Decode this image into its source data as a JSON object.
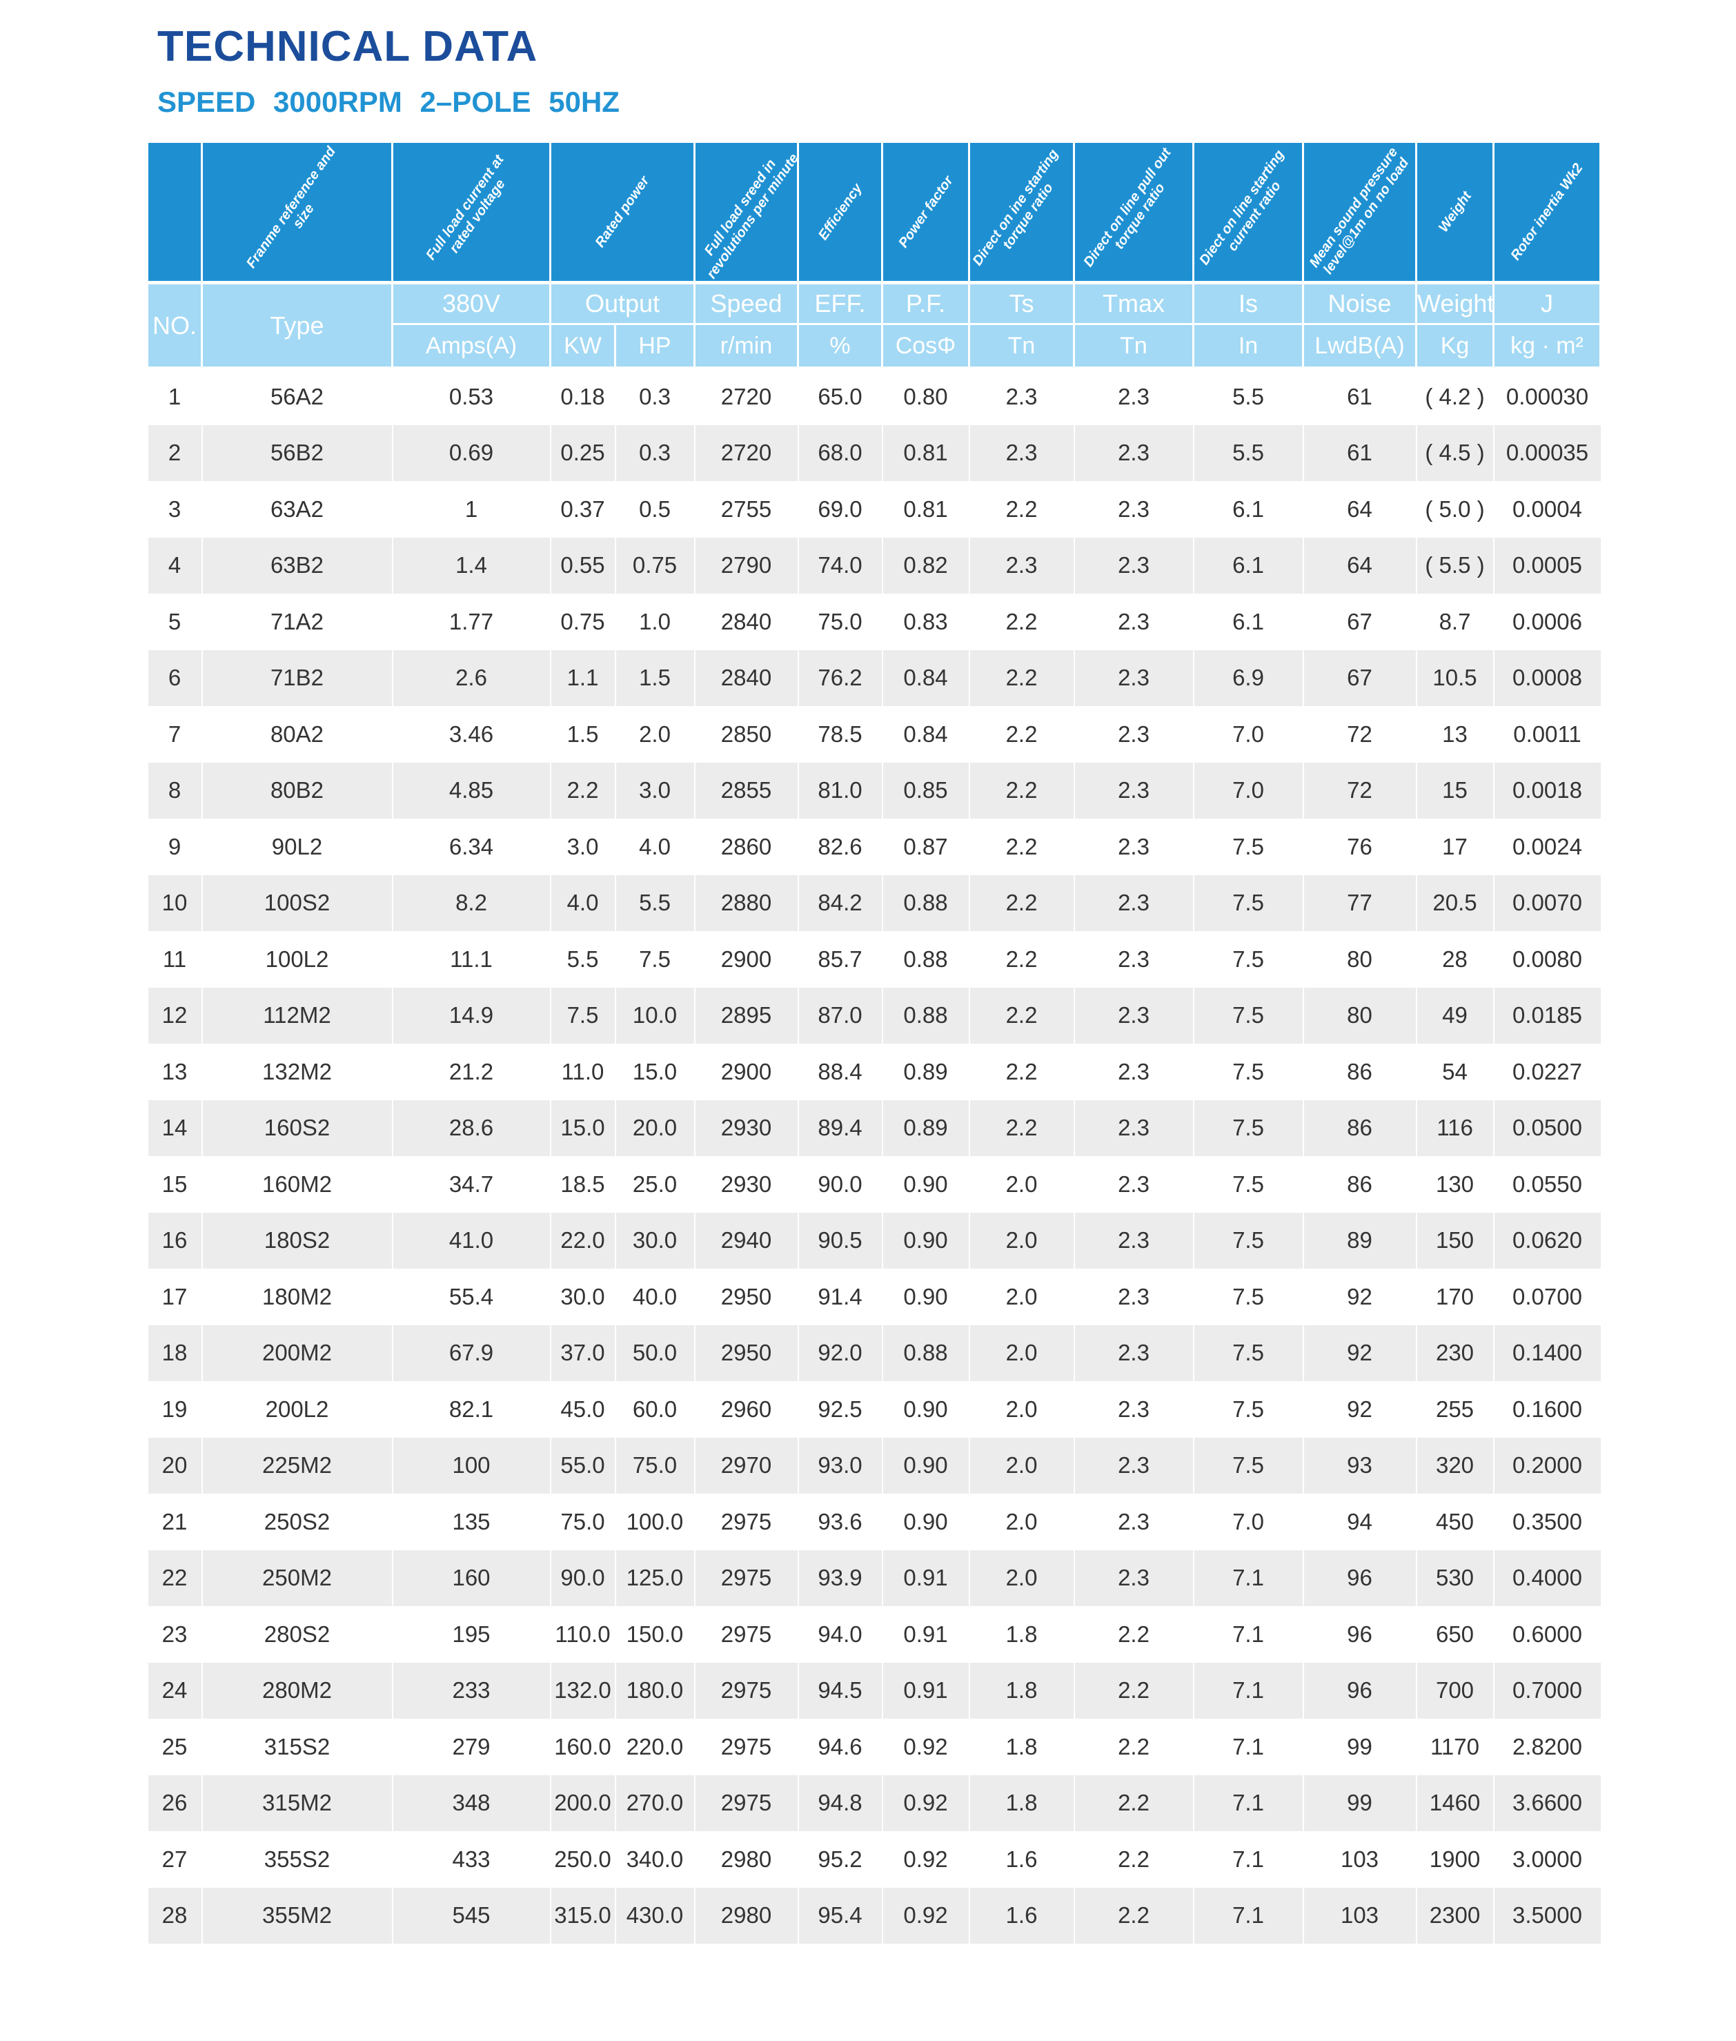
{
  "title": "TECHNICAL DATA",
  "subtitle": "SPEED   3000RPM   2–POLE  50HZ",
  "header": {
    "descriptions": [
      "",
      "Franme reference and size",
      "Full load current at rated voltage",
      "Rated power",
      "Full load sreed in revolutions per minute",
      "Efficiency",
      "Power factor",
      "Direct on ine starting torque ratio",
      "Direct on line pull out torque ratio",
      "Diect on line starting current ratio",
      "Mean sound pressure level@1m on no load",
      "Weight",
      "Rotor inertia Wk2"
    ],
    "no": "NO.",
    "type": "Type",
    "row1": [
      "380V",
      "Output",
      "Speed",
      "EFF.",
      "P.F.",
      "Ts",
      "Tmax",
      "Is",
      "Noise",
      "Weight",
      "J"
    ],
    "row2": [
      "Amps(A)",
      "KW",
      "HP",
      "r/min",
      "%",
      "CosΦ",
      "Tn",
      "Tn",
      "In",
      "LwdB(A)",
      "Kg",
      "kg · m²"
    ]
  },
  "colors": {
    "title": "#1b4d9b",
    "subtitle": "#2193d3",
    "header_dark": "#1e90d2",
    "header_light": "#a3d9f4",
    "row_alt": "#ececec"
  },
  "rows": [
    [
      "1",
      "56A2",
      "0.53",
      "0.18",
      "0.3",
      "2720",
      "65.0",
      "0.80",
      "2.3",
      "2.3",
      "5.5",
      "61",
      "( 4.2 )",
      "0.00030"
    ],
    [
      "2",
      "56B2",
      "0.69",
      "0.25",
      "0.3",
      "2720",
      "68.0",
      "0.81",
      "2.3",
      "2.3",
      "5.5",
      "61",
      "( 4.5 )",
      "0.00035"
    ],
    [
      "3",
      "63A2",
      "1",
      "0.37",
      "0.5",
      "2755",
      "69.0",
      "0.81",
      "2.2",
      "2.3",
      "6.1",
      "64",
      "( 5.0 )",
      "0.0004"
    ],
    [
      "4",
      "63B2",
      "1.4",
      "0.55",
      "0.75",
      "2790",
      "74.0",
      "0.82",
      "2.3",
      "2.3",
      "6.1",
      "64",
      "( 5.5 )",
      "0.0005"
    ],
    [
      "5",
      "71A2",
      "1.77",
      "0.75",
      "1.0",
      "2840",
      "75.0",
      "0.83",
      "2.2",
      "2.3",
      "6.1",
      "67",
      "8.7",
      "0.0006"
    ],
    [
      "6",
      "71B2",
      "2.6",
      "1.1",
      "1.5",
      "2840",
      "76.2",
      "0.84",
      "2.2",
      "2.3",
      "6.9",
      "67",
      "10.5",
      "0.0008"
    ],
    [
      "7",
      "80A2",
      "3.46",
      "1.5",
      "2.0",
      "2850",
      "78.5",
      "0.84",
      "2.2",
      "2.3",
      "7.0",
      "72",
      "13",
      "0.0011"
    ],
    [
      "8",
      "80B2",
      "4.85",
      "2.2",
      "3.0",
      "2855",
      "81.0",
      "0.85",
      "2.2",
      "2.3",
      "7.0",
      "72",
      "15",
      "0.0018"
    ],
    [
      "9",
      "90L2",
      "6.34",
      "3.0",
      "4.0",
      "2860",
      "82.6",
      "0.87",
      "2.2",
      "2.3",
      "7.5",
      "76",
      "17",
      "0.0024"
    ],
    [
      "10",
      "100S2",
      "8.2",
      "4.0",
      "5.5",
      "2880",
      "84.2",
      "0.88",
      "2.2",
      "2.3",
      "7.5",
      "77",
      "20.5",
      "0.0070"
    ],
    [
      "11",
      "100L2",
      "11.1",
      "5.5",
      "7.5",
      "2900",
      "85.7",
      "0.88",
      "2.2",
      "2.3",
      "7.5",
      "80",
      "28",
      "0.0080"
    ],
    [
      "12",
      "112M2",
      "14.9",
      "7.5",
      "10.0",
      "2895",
      "87.0",
      "0.88",
      "2.2",
      "2.3",
      "7.5",
      "80",
      "49",
      "0.0185"
    ],
    [
      "13",
      "132M2",
      "21.2",
      "11.0",
      "15.0",
      "2900",
      "88.4",
      "0.89",
      "2.2",
      "2.3",
      "7.5",
      "86",
      "54",
      "0.0227"
    ],
    [
      "14",
      "160S2",
      "28.6",
      "15.0",
      "20.0",
      "2930",
      "89.4",
      "0.89",
      "2.2",
      "2.3",
      "7.5",
      "86",
      "116",
      "0.0500"
    ],
    [
      "15",
      "160M2",
      "34.7",
      "18.5",
      "25.0",
      "2930",
      "90.0",
      "0.90",
      "2.0",
      "2.3",
      "7.5",
      "86",
      "130",
      "0.0550"
    ],
    [
      "16",
      "180S2",
      "41.0",
      "22.0",
      "30.0",
      "2940",
      "90.5",
      "0.90",
      "2.0",
      "2.3",
      "7.5",
      "89",
      "150",
      "0.0620"
    ],
    [
      "17",
      "180M2",
      "55.4",
      "30.0",
      "40.0",
      "2950",
      "91.4",
      "0.90",
      "2.0",
      "2.3",
      "7.5",
      "92",
      "170",
      "0.0700"
    ],
    [
      "18",
      "200M2",
      "67.9",
      "37.0",
      "50.0",
      "2950",
      "92.0",
      "0.88",
      "2.0",
      "2.3",
      "7.5",
      "92",
      "230",
      "0.1400"
    ],
    [
      "19",
      "200L2",
      "82.1",
      "45.0",
      "60.0",
      "2960",
      "92.5",
      "0.90",
      "2.0",
      "2.3",
      "7.5",
      "92",
      "255",
      "0.1600"
    ],
    [
      "20",
      "225M2",
      "100",
      "55.0",
      "75.0",
      "2970",
      "93.0",
      "0.90",
      "2.0",
      "2.3",
      "7.5",
      "93",
      "320",
      "0.2000"
    ],
    [
      "21",
      "250S2",
      "135",
      "75.0",
      "100.0",
      "2975",
      "93.6",
      "0.90",
      "2.0",
      "2.3",
      "7.0",
      "94",
      "450",
      "0.3500"
    ],
    [
      "22",
      "250M2",
      "160",
      "90.0",
      "125.0",
      "2975",
      "93.9",
      "0.91",
      "2.0",
      "2.3",
      "7.1",
      "96",
      "530",
      "0.4000"
    ],
    [
      "23",
      "280S2",
      "195",
      "110.0",
      "150.0",
      "2975",
      "94.0",
      "0.91",
      "1.8",
      "2.2",
      "7.1",
      "96",
      "650",
      "0.6000"
    ],
    [
      "24",
      "280M2",
      "233",
      "132.0",
      "180.0",
      "2975",
      "94.5",
      "0.91",
      "1.8",
      "2.2",
      "7.1",
      "96",
      "700",
      "0.7000"
    ],
    [
      "25",
      "315S2",
      "279",
      "160.0",
      "220.0",
      "2975",
      "94.6",
      "0.92",
      "1.8",
      "2.2",
      "7.1",
      "99",
      "1170",
      "2.8200"
    ],
    [
      "26",
      "315M2",
      "348",
      "200.0",
      "270.0",
      "2975",
      "94.8",
      "0.92",
      "1.8",
      "2.2",
      "7.1",
      "99",
      "1460",
      "3.6600"
    ],
    [
      "27",
      "355S2",
      "433",
      "250.0",
      "340.0",
      "2980",
      "95.2",
      "0.92",
      "1.6",
      "2.2",
      "7.1",
      "103",
      "1900",
      "3.0000"
    ],
    [
      "28",
      "355M2",
      "545",
      "315.0",
      "430.0",
      "2980",
      "95.4",
      "0.92",
      "1.6",
      "2.2",
      "7.1",
      "103",
      "2300",
      "3.5000"
    ]
  ]
}
